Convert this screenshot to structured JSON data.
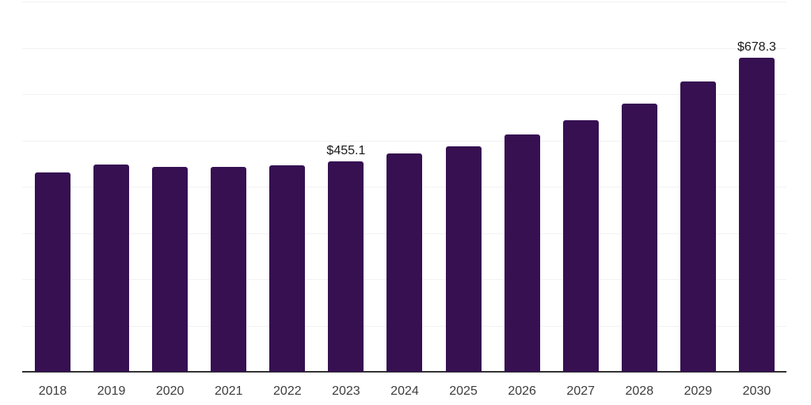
{
  "chart_data": {
    "type": "bar",
    "title": "",
    "xlabel": "",
    "ylabel": "",
    "categories": [
      "2018",
      "2019",
      "2020",
      "2021",
      "2022",
      "2023",
      "2024",
      "2025",
      "2026",
      "2027",
      "2028",
      "2029",
      "2030"
    ],
    "values": [
      430,
      448,
      442,
      442,
      447,
      455.1,
      472,
      488,
      513,
      543,
      580,
      628,
      678.3
    ],
    "data_labels": [
      "",
      "",
      "",
      "",
      "",
      "$455.1",
      "",
      "",
      "",
      "",
      "",
      "",
      "$678.3"
    ],
    "ylim": [
      0,
      800
    ],
    "gridline_step": 100,
    "grid": "horizontal-only",
    "legend": "none",
    "colors": {
      "bar": "#361051",
      "gridline": "#f2f2f2",
      "axis_line": "#333333",
      "tick_label": "#3d3d3d",
      "data_label": "#1a1a1a",
      "background": "#ffffff"
    }
  }
}
